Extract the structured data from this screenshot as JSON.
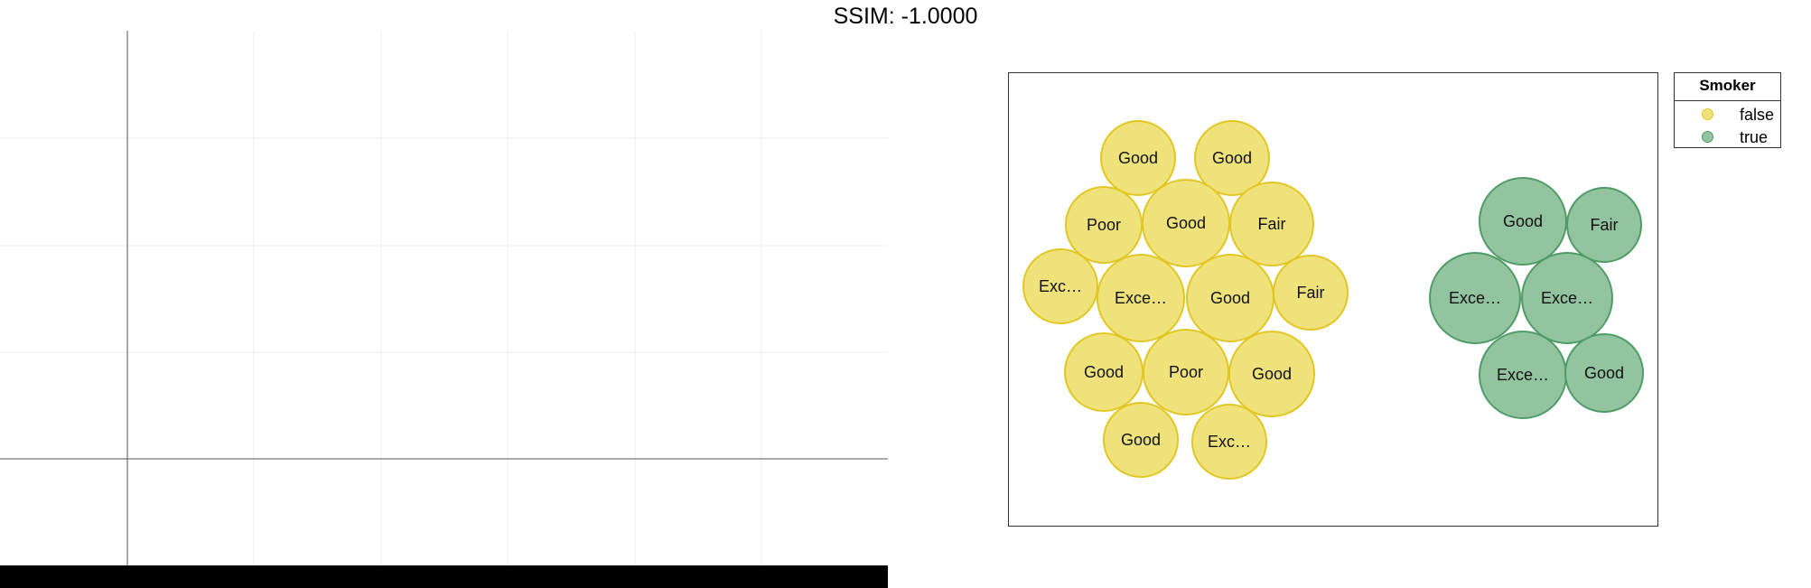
{
  "title": "SSIM: -1.0000",
  "colors": {
    "false_fill": "#f0e27a",
    "false_stroke": "#e2c724",
    "true_fill": "#93c4a0",
    "true_stroke": "#4f9c66"
  },
  "legend": {
    "title": "Smoker",
    "items": [
      {
        "label": "false",
        "color": "#f0e27a",
        "stroke": "#e2c724"
      },
      {
        "label": "true",
        "color": "#93c4a0",
        "stroke": "#4f9c66"
      }
    ]
  },
  "chart_data": [
    {
      "type": "scatter",
      "title": "",
      "xlabel": "",
      "ylabel": "",
      "series": [],
      "grid": true
    },
    {
      "type": "packed-bubble",
      "title": "",
      "legend_position": "right",
      "series": [
        {
          "name": "false",
          "points": [
            {
              "label": "Good"
            },
            {
              "label": "Good"
            },
            {
              "label": "Poor"
            },
            {
              "label": "Good"
            },
            {
              "label": "Fair"
            },
            {
              "label": "Exc…"
            },
            {
              "label": "Exce…"
            },
            {
              "label": "Good"
            },
            {
              "label": "Fair"
            },
            {
              "label": "Good"
            },
            {
              "label": "Poor"
            },
            {
              "label": "Good"
            },
            {
              "label": "Good"
            },
            {
              "label": "Exc…"
            }
          ]
        },
        {
          "name": "true",
          "points": [
            {
              "label": "Good"
            },
            {
              "label": "Fair"
            },
            {
              "label": "Exce…"
            },
            {
              "label": "Exce…"
            },
            {
              "label": "Exce…"
            },
            {
              "label": "Good"
            }
          ]
        }
      ]
    }
  ]
}
